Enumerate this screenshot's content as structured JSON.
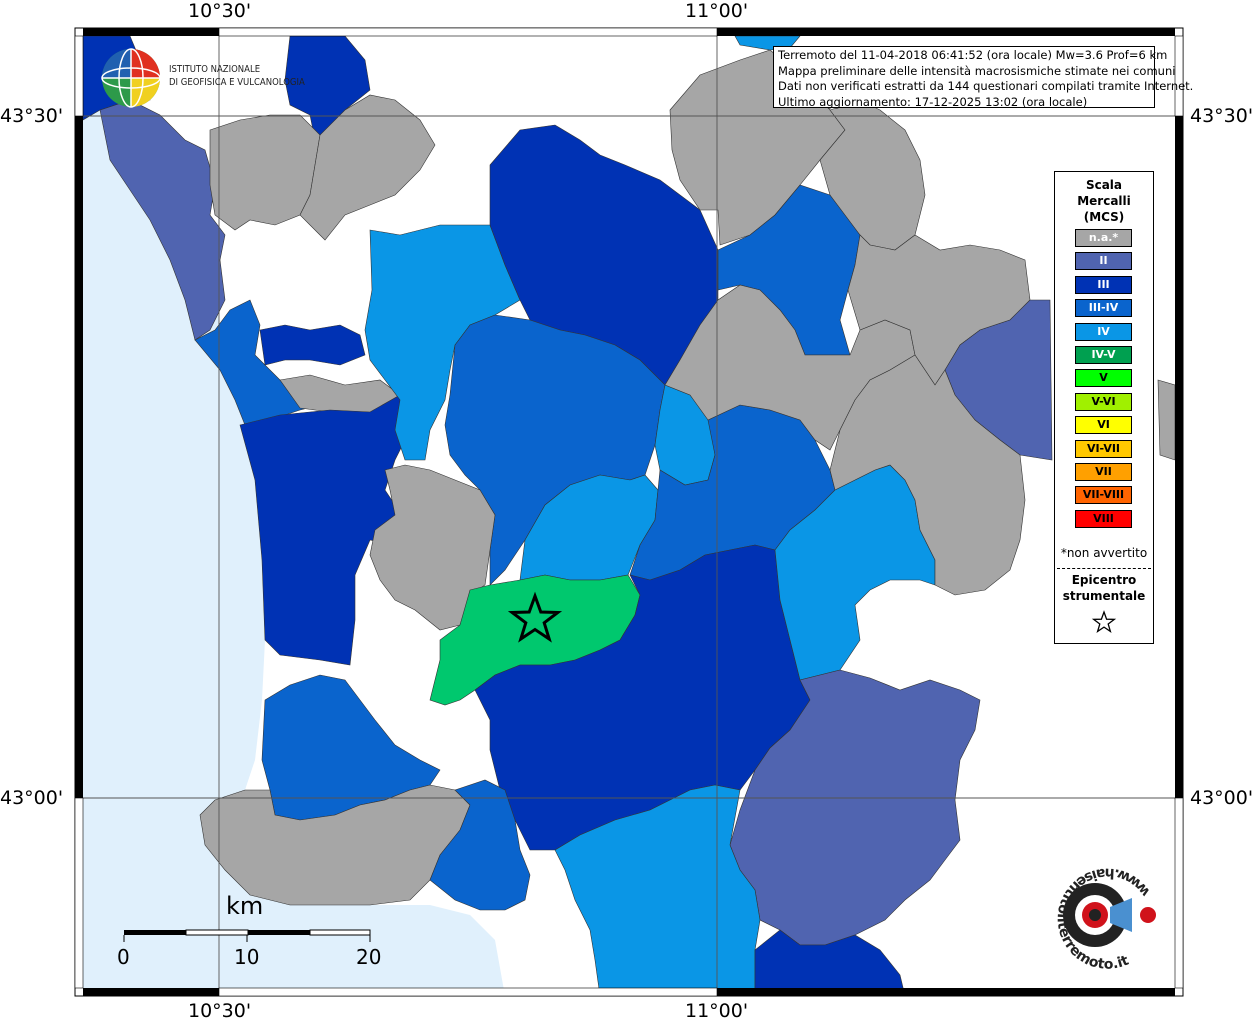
{
  "frame": {
    "lon_labels_top": [
      "10°30'",
      "11°00'"
    ],
    "lon_labels_bottom": [
      "10°30'",
      "11°00'"
    ],
    "lat_labels_left": [
      "43°30'",
      "43°00'"
    ],
    "lat_labels_right": [
      "43°30'",
      "43°00'"
    ]
  },
  "logo": {
    "line1": "ISTITUTO NAZIONALE",
    "line2": "DI GEOFISICA E VULCANOLOGIA"
  },
  "info_box": {
    "line1": "Terremoto del 11-04-2018 06:41:52 (ora locale) Mw=3.6 Prof=6 km",
    "line2": "Mappa preliminare delle intensità macrosismiche stimate nei comuni",
    "line3": "Dati non verificati estratti da 144 questionari compilati tramite Internet.",
    "line4": "Ultimo aggiornamento: 17-12-2025 13:02 (ora locale)"
  },
  "legend": {
    "title_line1": "Scala",
    "title_line2": "Mercalli",
    "title_line3": "(MCS)",
    "classes": [
      {
        "label": "n.a.*",
        "color": "#a6a6a6",
        "text_color": "#ffffff"
      },
      {
        "label": "II",
        "color": "#5064b0",
        "text_color": "#ffffff"
      },
      {
        "label": "III",
        "color": "#0032b4",
        "text_color": "#ffffff"
      },
      {
        "label": "III-IV",
        "color": "#0a64cd",
        "text_color": "#ffffff"
      },
      {
        "label": "IV",
        "color": "#0a96e6",
        "text_color": "#ffffff"
      },
      {
        "label": "IV-V",
        "color": "#00a050",
        "text_color": "#ffffff"
      },
      {
        "label": "V",
        "color": "#00ff00",
        "text_color": "#000000"
      },
      {
        "label": "V-VI",
        "color": "#a0f000",
        "text_color": "#000000"
      },
      {
        "label": "VI",
        "color": "#ffff00",
        "text_color": "#000000"
      },
      {
        "label": "VI-VII",
        "color": "#ffc800",
        "text_color": "#000000"
      },
      {
        "label": "VII",
        "color": "#ffa000",
        "text_color": "#000000"
      },
      {
        "label": "VII-VIII",
        "color": "#ff6400",
        "text_color": "#000000"
      },
      {
        "label": "VIII",
        "color": "#ff0000",
        "text_color": "#000000"
      }
    ],
    "na_note": "*non avvertito",
    "epicenter_line1": "Epicentro",
    "epicenter_line2": "strumentale"
  },
  "scale_bar": {
    "unit": "km",
    "ticks": [
      "0",
      "10",
      "20"
    ]
  },
  "hsit_logo": {
    "text": "www.haisentitoilterremoto.it"
  },
  "colors": {
    "sea": "#e0f0fc",
    "land": "#ffffff",
    "grid": "#555555",
    "frame": "#000000",
    "epicenter_zone": "#00c86e"
  }
}
